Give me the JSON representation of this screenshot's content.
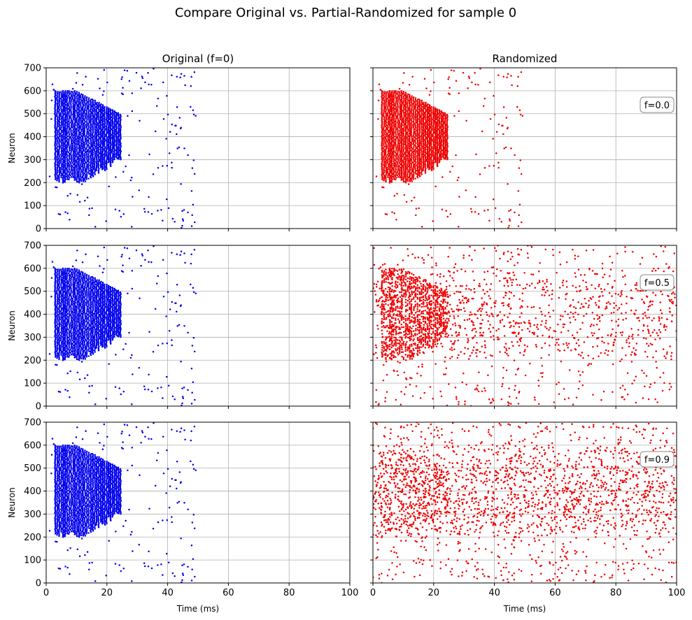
{
  "figure": {
    "suptitle": "Compare Original vs. Partial-Randomized for sample 0",
    "col_titles": [
      "Original (f=0)",
      "Randomized"
    ],
    "xlabel": "Time (ms)",
    "ylabel": "Neuron",
    "xticks": [
      "0",
      "20",
      "40",
      "60",
      "80",
      "100"
    ],
    "yticks": [
      "0",
      "100",
      "200",
      "300",
      "400",
      "500",
      "600",
      "700"
    ],
    "f_labels": [
      "f=0.0",
      "f=0.5",
      "f=0.9"
    ],
    "colors": {
      "original": "#0000ee",
      "randomized": "#ee0000",
      "grid": "#b0b0b0"
    }
  },
  "chart_data": [
    {
      "type": "scatter",
      "title": "Original (f=0)",
      "row": 0,
      "col": 0,
      "ylabel": "Neuron",
      "xlim": [
        0,
        100
      ],
      "ylim": [
        0,
        700
      ],
      "grid": true,
      "color": "#0000ee",
      "note": "Raster plot: dense spike band in neurons ~200-600 between ~3-25 ms, sparse spikes up to ~50 ms"
    },
    {
      "type": "scatter",
      "title": "Randomized",
      "row": 0,
      "col": 1,
      "annotation": "f=0.0",
      "xlim": [
        0,
        100
      ],
      "ylim": [
        0,
        700
      ],
      "grid": true,
      "color": "#ee0000"
    },
    {
      "type": "scatter",
      "row": 1,
      "col": 0,
      "ylabel": "Neuron",
      "xlim": [
        0,
        100
      ],
      "ylim": [
        0,
        700
      ],
      "grid": true,
      "color": "#0000ee"
    },
    {
      "type": "scatter",
      "row": 1,
      "col": 1,
      "annotation": "f=0.5",
      "xlim": [
        0,
        100
      ],
      "ylim": [
        0,
        700
      ],
      "grid": true,
      "color": "#ee0000",
      "note": "Half of spikes redistributed uniformly over 0-100 ms"
    },
    {
      "type": "scatter",
      "row": 2,
      "col": 0,
      "ylabel": "Neuron",
      "xlabel": "Time (ms)",
      "xlim": [
        0,
        100
      ],
      "ylim": [
        0,
        700
      ],
      "grid": true,
      "color": "#0000ee"
    },
    {
      "type": "scatter",
      "row": 2,
      "col": 1,
      "annotation": "f=0.9",
      "xlabel": "Time (ms)",
      "xlim": [
        0,
        100
      ],
      "ylim": [
        0,
        700
      ],
      "grid": true,
      "color": "#ee0000",
      "note": "Most spikes redistributed uniformly over 0-100 ms"
    }
  ]
}
